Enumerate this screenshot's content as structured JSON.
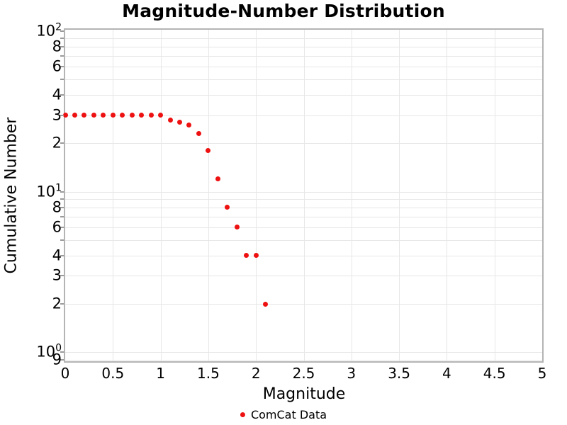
{
  "title": "Magnitude-Number Distribution",
  "x_axis": {
    "label": "Magnitude",
    "tick_labels": [
      "0",
      "0.5",
      "1",
      "1.5",
      "2",
      "2.5",
      "3",
      "3.5",
      "4",
      "4.5",
      "5"
    ],
    "tick_values": [
      0,
      0.5,
      1,
      1.5,
      2,
      2.5,
      3,
      3.5,
      4,
      4.5,
      5
    ],
    "gridline_values": [
      0.5,
      1,
      1.5,
      2,
      2.5,
      3,
      3.5,
      4,
      4.5
    ],
    "range": [
      0,
      5
    ]
  },
  "y_axis": {
    "label": "Cumulative Number",
    "scale": "log",
    "range": [
      0.88,
      102
    ],
    "tick_labels": [
      {
        "value": 100,
        "base": "10",
        "exp": "2"
      },
      {
        "value": 80,
        "base": "8"
      },
      {
        "value": 60,
        "base": "6"
      },
      {
        "value": 40,
        "base": "4"
      },
      {
        "value": 30,
        "base": "3"
      },
      {
        "value": 20,
        "base": "2"
      },
      {
        "value": 10,
        "base": "10",
        "exp": "1"
      },
      {
        "value": 8,
        "base": "8"
      },
      {
        "value": 6,
        "base": "6"
      },
      {
        "value": 4,
        "base": "4"
      },
      {
        "value": 3,
        "base": "3"
      },
      {
        "value": 2,
        "base": "2"
      },
      {
        "value": 1,
        "base": "10",
        "exp": "0"
      },
      {
        "value": 0.9,
        "base": "9"
      }
    ],
    "tick_values": [
      100,
      90,
      80,
      70,
      60,
      50,
      40,
      30,
      20,
      10,
      9,
      8,
      7,
      6,
      5,
      4,
      3,
      2,
      1,
      0.9
    ],
    "gridline_values": [
      90,
      80,
      70,
      60,
      50,
      40,
      30,
      20,
      10,
      9,
      8,
      7,
      6,
      5,
      4,
      3,
      2,
      1,
      0.9
    ]
  },
  "legend": {
    "label": "ComCat Data",
    "marker_color": "#ee1111",
    "position": "bottom-center"
  },
  "colors": {
    "marker": "#ee1111",
    "grid": "#e7e7e7",
    "frame": "#b4b4b4",
    "text": "#000000"
  },
  "chart_data": {
    "type": "scatter",
    "title": "Magnitude-Number Distribution",
    "xlabel": "Magnitude",
    "ylabel": "Cumulative Number",
    "x_scale": "linear",
    "y_scale": "log",
    "xlim": [
      0,
      5
    ],
    "ylim": [
      0.88,
      102
    ],
    "grid": true,
    "legend_position": "bottom-center",
    "series": [
      {
        "name": "ComCat Data",
        "color": "#ee1111",
        "marker": "circle",
        "x": [
          0.0,
          0.1,
          0.2,
          0.3,
          0.4,
          0.5,
          0.6,
          0.7,
          0.8,
          0.9,
          1.0,
          1.1,
          1.2,
          1.3,
          1.4,
          1.5,
          1.6,
          1.7,
          1.8,
          1.9,
          2.0,
          2.1
        ],
        "y": [
          30,
          30,
          30,
          30,
          30,
          30,
          30,
          30,
          30,
          30,
          30,
          28,
          27,
          26,
          23,
          18,
          12,
          8,
          6,
          4,
          4,
          2
        ]
      }
    ]
  }
}
